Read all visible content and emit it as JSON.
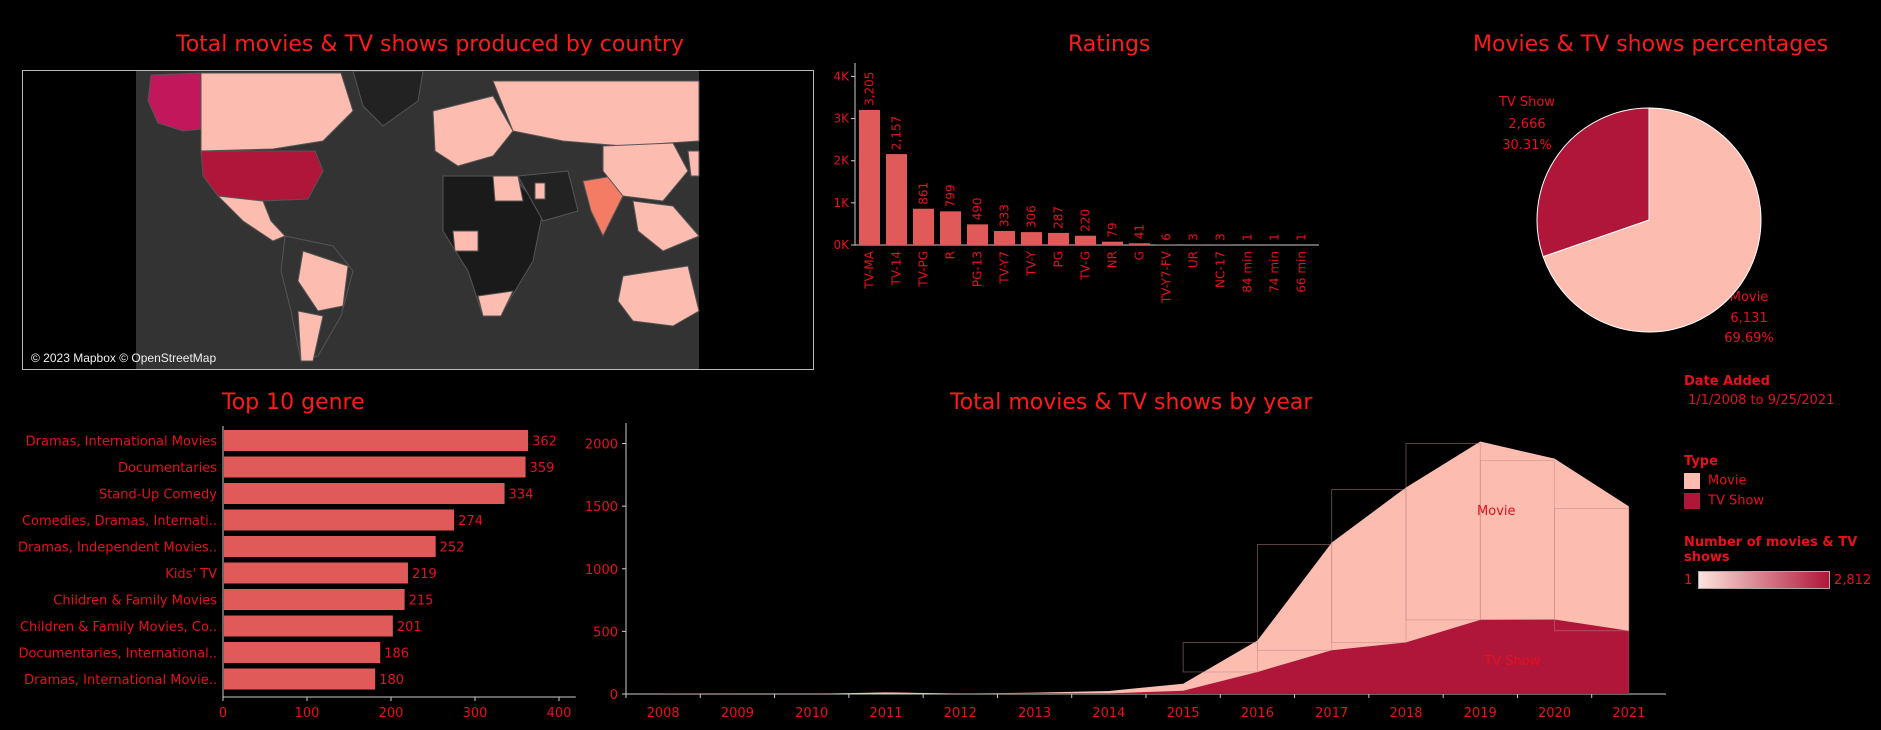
{
  "colors": {
    "bar": "#e05a5a",
    "movie": "#fdbcb0",
    "tvshow": "#b01639",
    "text": "#e8101b",
    "india": "#f47c65"
  },
  "map": {
    "title": "Total movies & TV shows produced by country",
    "credit": "© 2023 Mapbox © OpenStreetMap"
  },
  "chart_data": [
    {
      "type": "bar",
      "title": "Ratings",
      "categories": [
        "TV-MA",
        "TV-14",
        "TV-PG",
        "R",
        "PG-13",
        "TV-Y7",
        "TV-Y",
        "PG",
        "TV-G",
        "NR",
        "G",
        "TV-Y7-FV",
        "UR",
        "NC-17",
        "84 min",
        "74 min",
        "66 min"
      ],
      "values": [
        3205,
        2157,
        861,
        799,
        490,
        333,
        306,
        287,
        220,
        79,
        41,
        6,
        3,
        3,
        1,
        1,
        1
      ],
      "value_labels": [
        "3,205",
        "2,157",
        "861",
        "799",
        "490",
        "333",
        "306",
        "287",
        "220",
        "79",
        "41",
        "6",
        "3",
        "3",
        "1",
        "1",
        "1"
      ],
      "ylim": [
        0,
        4200
      ],
      "yticks": [
        "0K",
        "1K",
        "2K",
        "3K",
        "4K"
      ]
    },
    {
      "type": "pie",
      "title": "Movies & TV shows percentages",
      "slices": [
        {
          "name": "Movie",
          "value": 6131,
          "label": "6,131",
          "pct": "69.69%"
        },
        {
          "name": "TV Show",
          "value": 2666,
          "label": "2,666",
          "pct": "30.31%"
        }
      ]
    },
    {
      "type": "bar",
      "orientation": "horizontal",
      "title": "Top 10 genre",
      "categories": [
        "Dramas, International Movies",
        "Documentaries",
        "Stand-Up Comedy",
        "Comedies, Dramas, Internati..",
        "Dramas, Independent Movies..",
        "Kids' TV",
        "Children & Family Movies",
        "Children & Family Movies, Co..",
        "Documentaries, International..",
        "Dramas, International Movie.."
      ],
      "values": [
        362,
        359,
        334,
        274,
        252,
        219,
        215,
        201,
        186,
        180
      ],
      "xlim": [
        0,
        420
      ],
      "xticks": [
        "0",
        "100",
        "200",
        "300",
        "400"
      ]
    },
    {
      "type": "area",
      "title": "Total movies & TV shows by year",
      "x": [
        "2008",
        "2009",
        "2010",
        "2011",
        "2012",
        "2013",
        "2014",
        "2015",
        "2016",
        "2017",
        "2018",
        "2019",
        "2020",
        "2021"
      ],
      "series": [
        {
          "name": "Movie",
          "values": [
            1,
            2,
            1,
            13,
            3,
            6,
            19,
            56,
            251,
            860,
            1237,
            1424,
            1284,
            993
          ]
        },
        {
          "name": "TV Show",
          "values": [
            1,
            0,
            0,
            0,
            0,
            5,
            5,
            26,
            176,
            349,
            412,
            592,
            595,
            505
          ]
        }
      ],
      "ylim": [
        0,
        2100
      ],
      "yticks": [
        "0",
        "500",
        "1000",
        "1500",
        "2000"
      ]
    }
  ],
  "labels": {
    "ratings_title": "Ratings",
    "pie_title": "Movies & TV shows percentages",
    "genre_title": "Top 10 genre",
    "year_title": "Total movies & TV shows by year",
    "pie_tv_name": "TV Show",
    "pie_tv_count": "2,666",
    "pie_tv_pct": "30.31%",
    "pie_movie_name": "Movie",
    "pie_movie_count": "6,131",
    "pie_movie_pct": "69.69%",
    "area_movie_label": "Movie",
    "area_tv_label": "TV Show"
  },
  "legend": {
    "date_title": "Date Added",
    "date_range": "1/1/2008 to 9/25/2021",
    "type_title": "Type",
    "type_movie": "Movie",
    "type_tv": "TV Show",
    "count_title": "Number of  movies & TV shows",
    "count_min": "1",
    "count_max": "2,812"
  }
}
